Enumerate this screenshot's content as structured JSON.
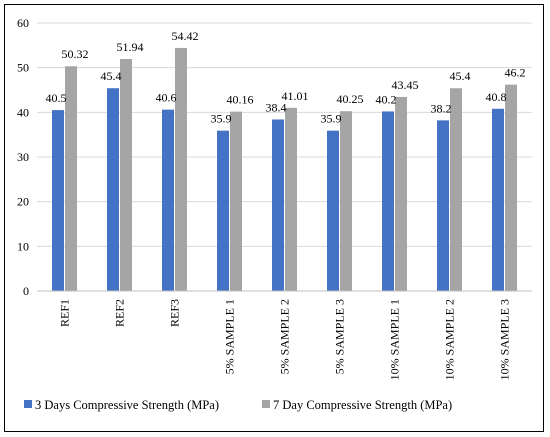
{
  "chart_data": {
    "type": "bar",
    "categories": [
      "REF1",
      "REF2",
      "REF3",
      "5% SAMPLE 1",
      "5% SAMPLE 2",
      "5% SAMPLE 3",
      "10% SAMPLE 1",
      "10% SAMPLE 2",
      "10% SAMPLE 3"
    ],
    "series": [
      {
        "name": "3 Days Compressive Strength (MPa)",
        "color": "#4472C4",
        "values": [
          40.5,
          45.4,
          40.6,
          35.9,
          38.4,
          35.9,
          40.2,
          38.2,
          40.8
        ],
        "labels": [
          "40.5",
          "45.4",
          "40.6",
          "35.9",
          "38.4",
          "35.9",
          "40.2",
          "38.2",
          "40.8"
        ]
      },
      {
        "name": "7 Day Compressive Strength (MPa)",
        "color": "#A5A5A5",
        "values": [
          50.32,
          51.94,
          54.42,
          40.16,
          41.01,
          40.25,
          43.45,
          45.4,
          46.2
        ],
        "labels": [
          "50.32",
          "51.94",
          "54.42",
          "40.16",
          "41.01",
          "40.25",
          "43.45",
          "45.4",
          "46.2"
        ]
      }
    ],
    "title": "",
    "xlabel": "",
    "ylabel": "",
    "ylim": [
      0,
      60
    ],
    "yticks": [
      0,
      10,
      20,
      30,
      40,
      50,
      60
    ],
    "grid": true,
    "gridColor": "#D9D9D9",
    "legend": "bottom"
  }
}
